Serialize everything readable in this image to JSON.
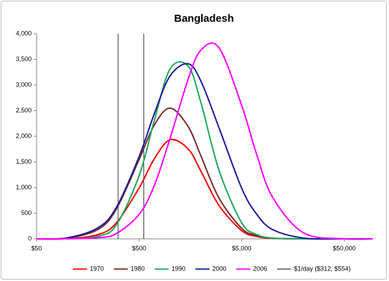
{
  "chart_data": {
    "type": "line",
    "title": "Bangladesh",
    "xscale": "log",
    "grid": false,
    "legend": "bottom",
    "x": [
      50,
      100,
      200,
      300,
      500,
      700,
      1000,
      1500,
      2000,
      3000,
      5000,
      7000,
      10000,
      20000,
      50000,
      95000
    ],
    "series": [
      {
        "name": "1970",
        "color": "#ff0000",
        "values": [
          0,
          4,
          84,
          311,
          992,
          1554,
          1931,
          1756,
          1323,
          654,
          161,
          48,
          10,
          0,
          0,
          0
        ]
      },
      {
        "name": "1980",
        "color": "#7b2a2a",
        "values": [
          0,
          12,
          186,
          581,
          1547,
          2212,
          2550,
          2193,
          1619,
          798,
          205,
          65,
          14,
          0,
          0,
          0
        ]
      },
      {
        "name": "1990",
        "color": "#1aa85a",
        "values": [
          0,
          1,
          52,
          274,
          1231,
          2294,
          3311,
          3372,
          2662,
          1340,
          313,
          86,
          15,
          0,
          0,
          0
        ]
      },
      {
        "name": "2000",
        "color": "#1a1a9c",
        "values": [
          1,
          21,
          219,
          614,
          1604,
          2430,
          3176,
          3414,
          3078,
          2170,
          987,
          481,
          181,
          16,
          0,
          0
        ]
      },
      {
        "name": "2006",
        "color": "#ff00ff",
        "values": [
          0,
          1,
          23,
          103,
          478,
          1031,
          1955,
          3109,
          3680,
          3728,
          2601,
          1646,
          813,
          118,
          1,
          0
        ]
      }
    ],
    "reference_lines": {
      "name": "$1/day ($312, $554)",
      "color": "#000000",
      "values": [
        312,
        554
      ]
    },
    "xlim": [
      50,
      95000
    ],
    "xticks": [
      {
        "value": 50,
        "label": "$50"
      },
      {
        "value": 500,
        "label": "$500"
      },
      {
        "value": 5000,
        "label": "$5,000"
      },
      {
        "value": 50000,
        "label": "$50,000"
      }
    ],
    "ylim": [
      0,
      4000
    ],
    "yticks": [
      0,
      500,
      {
        "value": 1000,
        "label": "1,000"
      },
      {
        "value": 1500,
        "label": "1,500"
      },
      {
        "value": 2000,
        "label": "2,000"
      },
      {
        "value": 2500,
        "label": "2,500"
      },
      {
        "value": 3000,
        "label": "3,000"
      },
      {
        "value": 3500,
        "label": "3,500"
      },
      {
        "value": 4000,
        "label": "4,000"
      }
    ]
  }
}
